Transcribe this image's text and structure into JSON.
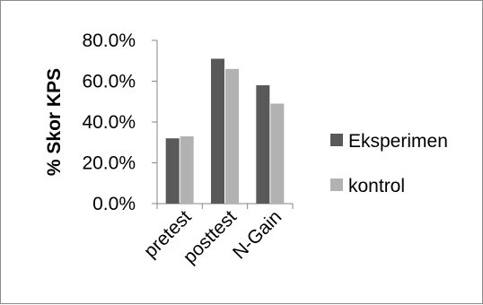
{
  "chart_data": {
    "type": "bar",
    "title": "",
    "xlabel": "",
    "ylabel": "% Skor KPS",
    "categories": [
      "pretest",
      "posttest",
      "N-Gain"
    ],
    "series": [
      {
        "name": "Eksperimen",
        "values": [
          0.32,
          0.71,
          0.58
        ],
        "color": "#595959"
      },
      {
        "name": "kontrol",
        "values": [
          0.33,
          0.66,
          0.49
        ],
        "color": "#b2b2b2"
      }
    ],
    "ylim": [
      0,
      0.8
    ],
    "yticks": [
      0,
      0.2,
      0.4,
      0.6,
      0.8
    ],
    "ytick_labels": [
      "0.0%",
      "20.0%",
      "40.0%",
      "60.0%",
      "80.0%"
    ],
    "grid": false,
    "legend_position": "right"
  }
}
